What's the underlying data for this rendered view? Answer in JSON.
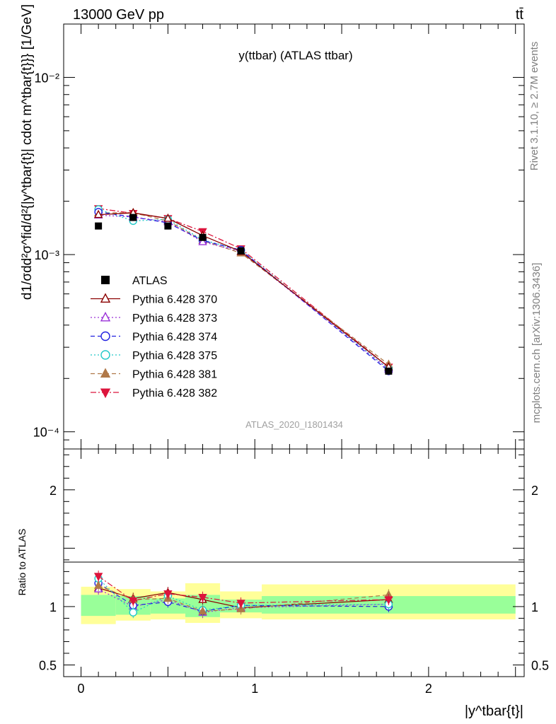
{
  "header": {
    "left": "13000 GeV pp",
    "right": "tt̄"
  },
  "side_labels": {
    "rivet": "Rivet 3.1.10, ≥ 2.7M events",
    "mcplots": "mcplots.cern.ch [arXiv:1306.3436]"
  },
  "chart_data": [
    {
      "type": "line",
      "title": "y(ttbar) (ATLAS ttbar)",
      "watermark": "ATLAS_2020_I1801434",
      "ylabel": "d1/σdd²σ^fid/d²{|y^tbar{t}| cdot m^tbar{t}}} [1/GeV]",
      "xlabel": "|y^tbar{t}|",
      "xlim": [
        -0.1,
        2.55
      ],
      "ylim": [
        8e-05,
        0.02
      ],
      "yscale": "log",
      "yticks": [
        {
          "value": 0.0001,
          "label": "10⁻⁴"
        },
        {
          "value": 0.001,
          "label": "10⁻³"
        },
        {
          "value": 0.01,
          "label": "10⁻²"
        }
      ],
      "legend": {
        "position": "left-center"
      },
      "data": {
        "x": [
          0.1,
          0.3,
          0.5,
          0.7,
          0.92,
          1.77
        ],
        "series": [
          {
            "name": "ATLAS",
            "color": "#000000",
            "values": [
              0.00145,
              0.00162,
              0.00145,
              0.00125,
              0.00105,
              0.00022
            ]
          },
          {
            "name": "Pythia 6.428 370",
            "color": "#8b0000",
            "values": [
              0.00168,
              0.00172,
              0.0016,
              0.00128,
              0.00104,
              0.000232
            ]
          },
          {
            "name": "Pythia 6.428 373",
            "color": "#9a30d8",
            "values": [
              0.00167,
              0.00163,
              0.00153,
              0.00118,
              0.00104,
              0.000225
            ]
          },
          {
            "name": "Pythia 6.428 374",
            "color": "#2020e0",
            "values": [
              0.00174,
              0.00163,
              0.00151,
              0.0012,
              0.00106,
              0.00022
            ]
          },
          {
            "name": "Pythia 6.428 375",
            "color": "#20c8c8",
            "values": [
              0.0018,
              0.00155,
              0.00158,
              0.00121,
              0.00106,
              0.000226
            ]
          },
          {
            "name": "Pythia 6.428 381",
            "color": "#b07848",
            "values": [
              0.00172,
              0.00172,
              0.00155,
              0.0012,
              0.00102,
              0.00024
            ]
          },
          {
            "name": "Pythia 6.428 382",
            "color": "#dc143c",
            "values": [
              0.00182,
              0.00171,
              0.0016,
              0.00135,
              0.00108,
              0.000232
            ]
          }
        ]
      }
    },
    {
      "type": "line",
      "ylabel": "Ratio to ATLAS",
      "ylim": [
        0.4,
        2.35
      ],
      "xlim": [
        -0.1,
        2.55
      ],
      "yticks": [
        {
          "value": 0.5,
          "label": "0.5"
        },
        {
          "value": 1,
          "label": "1"
        },
        {
          "value": 2,
          "label": "2"
        }
      ],
      "xticks": [
        {
          "value": 0,
          "label": "0"
        },
        {
          "value": 1,
          "label": "1"
        },
        {
          "value": 2,
          "label": "2"
        }
      ],
      "bands": {
        "edges": [
          0,
          0.2,
          0.4,
          0.6,
          0.8,
          1.04,
          2.5
        ],
        "inner": [
          [
            0.92,
            1.1
          ],
          [
            0.93,
            1.09
          ],
          [
            0.94,
            1.07
          ],
          [
            0.91,
            1.1
          ],
          [
            0.95,
            1.06
          ],
          [
            0.94,
            1.09
          ]
        ],
        "outer": [
          [
            0.85,
            1.17
          ],
          [
            0.88,
            1.15
          ],
          [
            0.89,
            1.13
          ],
          [
            0.86,
            1.2
          ],
          [
            0.9,
            1.13
          ],
          [
            0.89,
            1.19
          ]
        ]
      },
      "series": [
        {
          "name": "Pythia 6.428 370",
          "values": [
            1.16,
            1.07,
            1.12,
            1.06,
            0.99,
            1.06
          ]
        },
        {
          "name": "Pythia 6.428 373",
          "values": [
            1.15,
            1.0,
            1.06,
            0.95,
            0.99,
            1.02
          ]
        },
        {
          "name": "Pythia 6.428 374",
          "values": [
            1.2,
            1.01,
            1.04,
            0.96,
            1.01,
            1.0
          ]
        },
        {
          "name": "Pythia 6.428 375",
          "values": [
            1.24,
            0.95,
            1.09,
            0.97,
            1.01,
            1.02
          ]
        },
        {
          "name": "Pythia 6.428 381",
          "values": [
            1.18,
            1.06,
            1.07,
            0.96,
            0.98,
            1.1
          ]
        },
        {
          "name": "Pythia 6.428 382",
          "values": [
            1.26,
            1.05,
            1.11,
            1.08,
            1.03,
            1.06
          ]
        }
      ]
    }
  ]
}
